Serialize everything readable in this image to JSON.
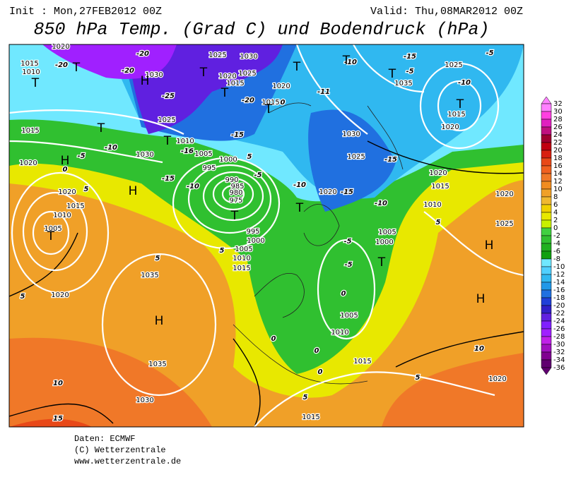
{
  "header": {
    "init": "Init : Mon,27FEB2012 00Z",
    "valid": "Valid: Thu,08MAR2012 00Z",
    "title": "850 hPa Temp. (Grad C) und Bodendruck (hPa)"
  },
  "colorbar": {
    "ticks": [
      32,
      30,
      28,
      26,
      24,
      22,
      20,
      18,
      16,
      14,
      12,
      10,
      8,
      6,
      4,
      2,
      0,
      -2,
      -4,
      -6,
      -8,
      -10,
      -12,
      -14,
      -16,
      -18,
      -20,
      -22,
      -24,
      -26,
      -28,
      -30,
      -32,
      -34,
      -36
    ],
    "colors": [
      "#ff80ff",
      "#ff40e0",
      "#e020c0",
      "#c01080",
      "#a00030",
      "#c00010",
      "#d82010",
      "#e84818",
      "#f06020",
      "#f07828",
      "#f08c20",
      "#f0a028",
      "#f0b830",
      "#f0d000",
      "#e8e800",
      "#c8f000",
      "#40d040",
      "#30c030",
      "#20b020",
      "#10a010",
      "#70e8ff",
      "#50d0ff",
      "#30b8f0",
      "#2098e8",
      "#2070e0",
      "#2040d8",
      "#3020c8",
      "#6020e0",
      "#8020ff",
      "#a020ff",
      "#c020e8",
      "#a010c0",
      "#800090",
      "#600070"
    ]
  },
  "map": {
    "pressure_labels": [
      "1015",
      "1010",
      "1020",
      "1030",
      "1025",
      "1030",
      "1025",
      "1020",
      "1015",
      "1020",
      "1015",
      "1025",
      "1010",
      "1005",
      "1000",
      "995",
      "990",
      "985",
      "980",
      "975",
      "995",
      "1000",
      "1005",
      "1010",
      "1015",
      "1030",
      "1020",
      "1015",
      "1020",
      "1015",
      "1010",
      "1005",
      "1020",
      "1035",
      "1035",
      "1030",
      "1015",
      "1015",
      "1010",
      "1005",
      "1005",
      "1000",
      "1010",
      "1015",
      "1020",
      "1020",
      "1025",
      "1030",
      "1035",
      "1025",
      "1015",
      "1020",
      "1020",
      "1025",
      "1020"
    ],
    "temp_labels": [
      "-20",
      "-20",
      "-25",
      "-20",
      "-20",
      "-15",
      "-10",
      "-5",
      "0",
      "5",
      "-16",
      "-15",
      "-10",
      "-5",
      "5",
      "-10",
      "-15",
      "-10",
      "-15",
      "-11",
      "-10",
      "-15",
      "-5",
      "-10",
      "-5",
      "5",
      "-5",
      "-5",
      "0",
      "5",
      "5",
      "5",
      "10",
      "15",
      "10",
      "5",
      "0",
      "0",
      "0",
      "5",
      "0"
    ],
    "centers": [
      "H",
      "T",
      "T",
      "T",
      "T",
      "T",
      "T",
      "H",
      "H",
      "T",
      "T",
      "T",
      "T",
      "T",
      "T",
      "T",
      "T",
      "H",
      "H",
      "H",
      "T"
    ]
  },
  "footer": {
    "source": "Daten: ECMWF",
    "copyright": "(C) Wetterzentrale",
    "url": "www.wetterzentrale.de"
  }
}
